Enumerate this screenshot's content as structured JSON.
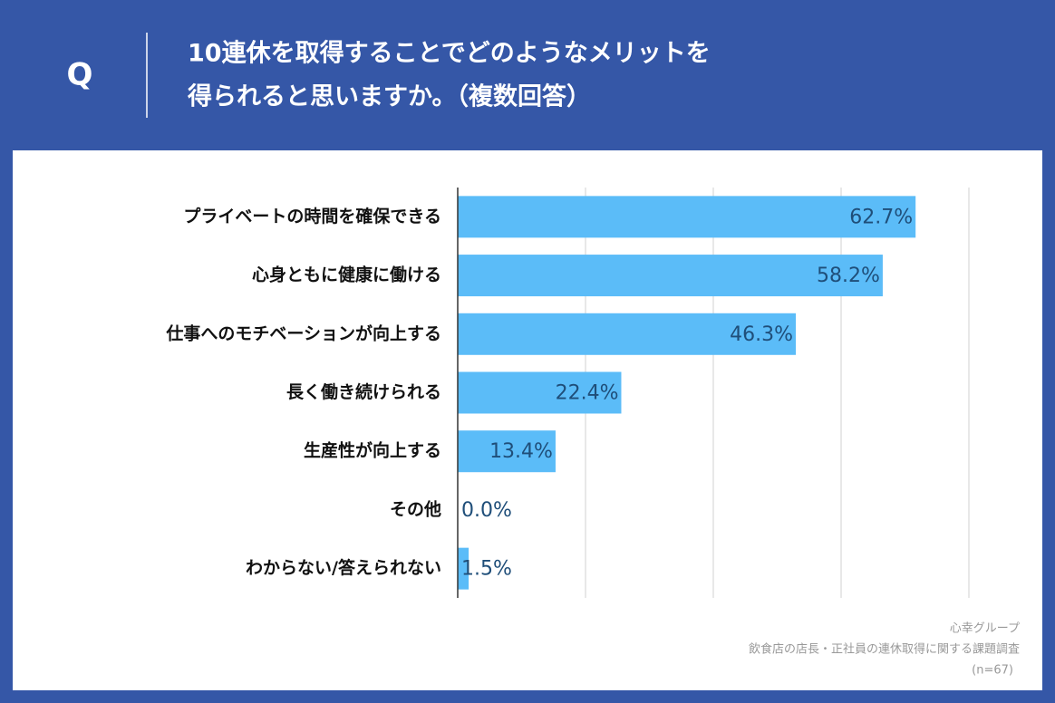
{
  "chart_data": {
    "type": "bar",
    "orientation": "horizontal",
    "question_marker": "Q",
    "title_lines": [
      "10連休を取得することでどのようなメリットを",
      "得られると思いますか。（複数回答）"
    ],
    "categories": [
      "プライベートの時間を確保できる",
      "心身ともに健康に働ける",
      "仕事へのモチベーションが向上する",
      "長く働き続けられる",
      "生産性が向上する",
      "その他",
      "わからない/答えられない"
    ],
    "values": [
      62.7,
      58.2,
      46.3,
      22.4,
      13.4,
      0.0,
      1.5
    ],
    "value_labels": [
      "62.7%",
      "58.2%",
      "46.3%",
      "22.4%",
      "13.4%",
      "0.0%",
      "1.5%"
    ],
    "color": "#5bbcf8",
    "xlim": [
      0,
      70
    ],
    "xticks": [
      0,
      17.5,
      35,
      52.5,
      70
    ],
    "grid": true,
    "source_lines": [
      "心幸グループ",
      "飲食店の店長・正社員の連休取得に関する課題調査",
      "(n=67)"
    ]
  }
}
